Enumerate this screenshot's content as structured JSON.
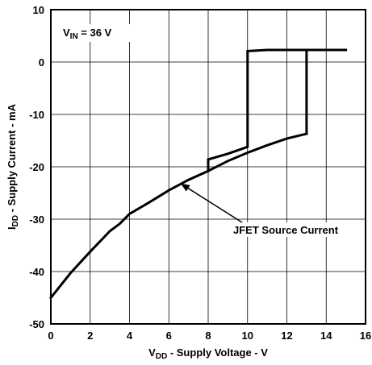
{
  "chart_data": {
    "type": "line",
    "xlabel": {
      "main": "V",
      "sub": "DD",
      "rest": " - Supply Voltage - V"
    },
    "ylabel": {
      "main": "I",
      "sub": "DD",
      "rest": " - Supply Current - mA"
    },
    "xlim": [
      0,
      16
    ],
    "ylim": [
      -50,
      10
    ],
    "xticks": [
      0,
      2,
      4,
      6,
      8,
      10,
      12,
      14,
      16
    ],
    "yticks": [
      10,
      0,
      -10,
      -20,
      -30,
      -40,
      -50
    ],
    "grid": true,
    "condition": {
      "main": "V",
      "sub": "IN",
      "rest": " = 36 V"
    },
    "annotation": {
      "text": "JFET Source Current",
      "arrow_from": [
        9.8,
        -30.8
      ],
      "arrow_to": [
        6.6,
        -23.2
      ]
    },
    "series": [
      {
        "points": [
          [
            0,
            -45
          ],
          [
            1,
            -40.3
          ],
          [
            2,
            -36.2
          ],
          [
            3,
            -32.3
          ],
          [
            3.5,
            -30.9
          ],
          [
            4,
            -29
          ],
          [
            5,
            -26.8
          ],
          [
            6,
            -24.5
          ],
          [
            7,
            -22.5
          ],
          [
            8,
            -20.8
          ],
          [
            9,
            -18.9
          ],
          [
            10,
            -17.3
          ],
          [
            11,
            -15.9
          ],
          [
            12,
            -14.6
          ],
          [
            13,
            -13.7
          ]
        ]
      },
      {
        "points": [
          [
            13,
            -13.7
          ],
          [
            13,
            2.3
          ],
          [
            14,
            2.3
          ],
          [
            15,
            2.3
          ]
        ]
      },
      {
        "points": [
          [
            8,
            -20.8
          ],
          [
            8,
            -18.6
          ],
          [
            9,
            -17.5
          ],
          [
            10,
            -16.2
          ],
          [
            10,
            2.1
          ],
          [
            11,
            2.3
          ],
          [
            13,
            2.3
          ]
        ]
      }
    ]
  }
}
